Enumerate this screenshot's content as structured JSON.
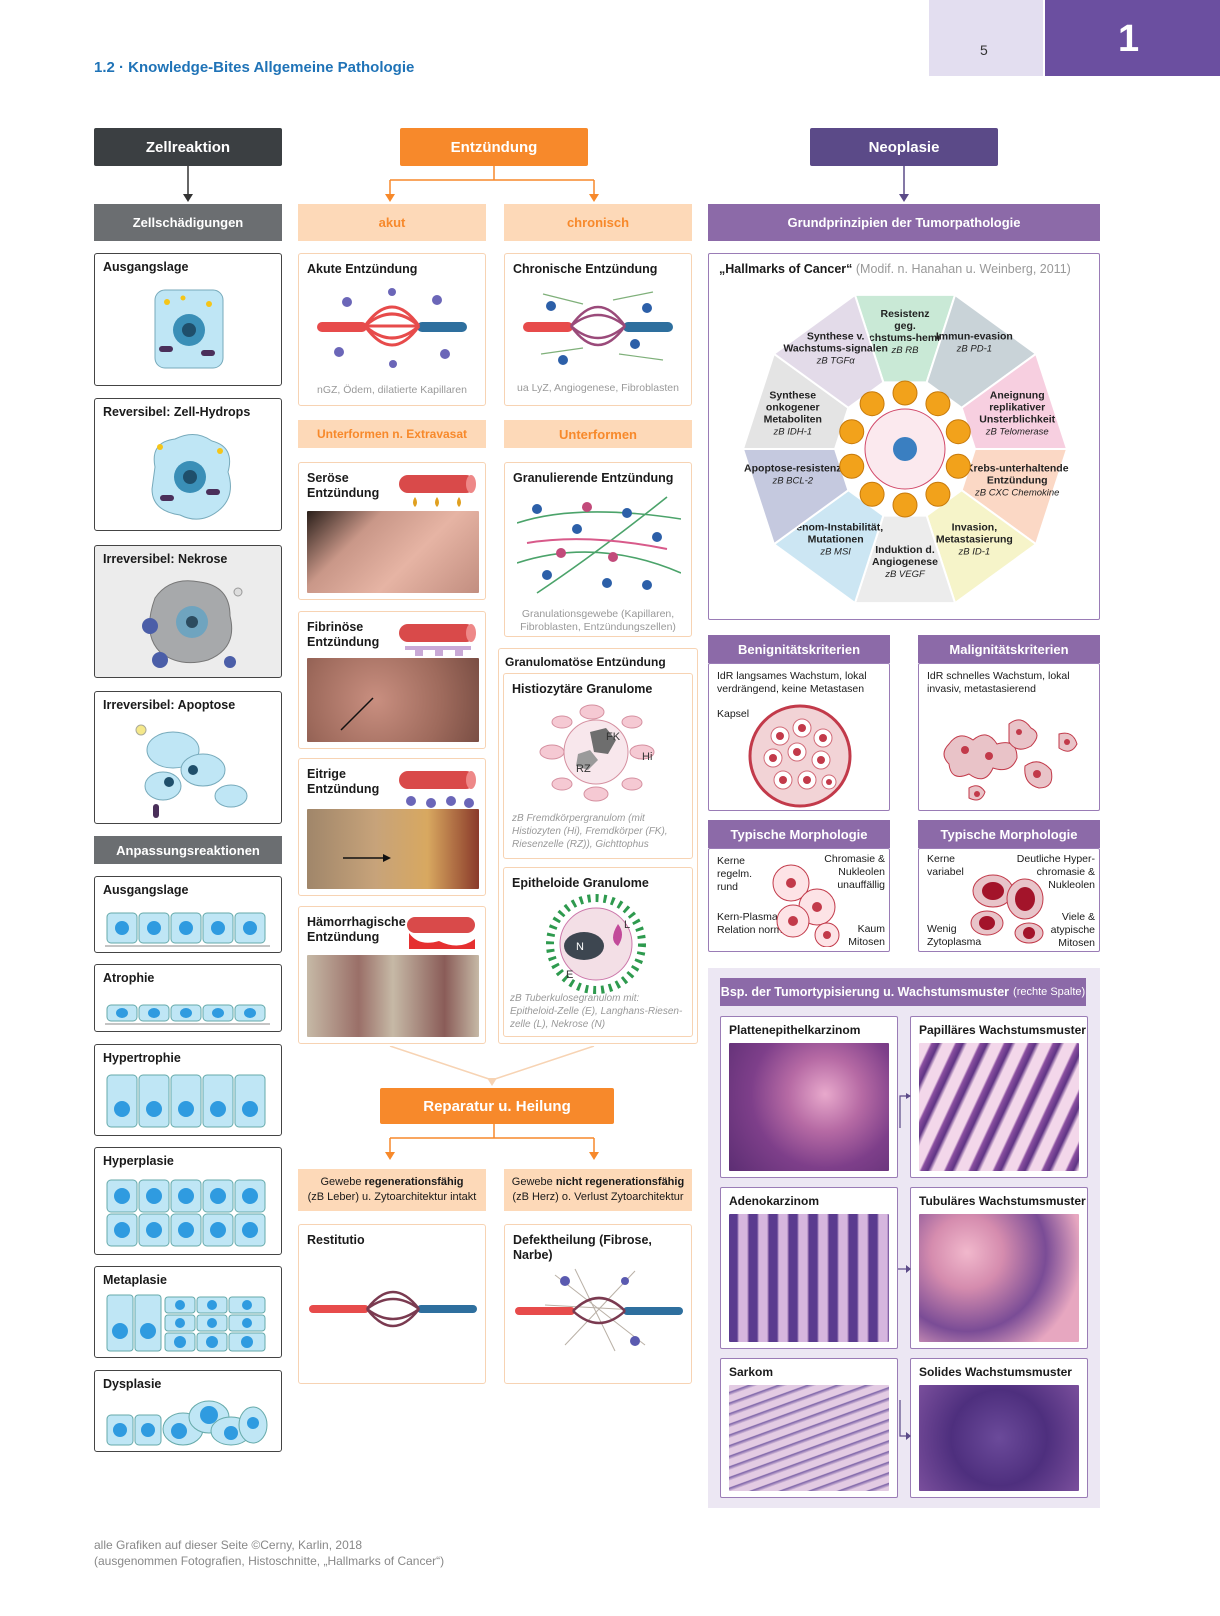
{
  "page": {
    "number": "5",
    "chapter": "1",
    "section_title": "1.2 · Knowledge-Bites Allgemeine Pathologie"
  },
  "colors": {
    "dark": "#3b3f42",
    "orange": "#f7892b",
    "orange_light": "#fdd9b8",
    "purple": "#5b4a88",
    "purple_mid": "#8c6aa8",
    "blue_title": "#1f73b7"
  },
  "col1": {
    "header": "Zellreaktion",
    "sub1": "Zellschädigungen",
    "boxes1": [
      "Ausgangslage",
      "Reversibel: Zell-Hydrops",
      "Irreversibel: Nekrose",
      "Irreversibel: Apoptose"
    ],
    "sub2": "Anpassungsreaktionen",
    "boxes2": [
      "Ausgangslage",
      "Atrophie",
      "Hypertrophie",
      "Hyperplasie",
      "Metaplasie",
      "Dysplasie"
    ]
  },
  "col2": {
    "header": "Entzündung",
    "acute": {
      "label": "akut",
      "box_title": "Akute Entzündung",
      "box_caption": "nGZ, Ödem, dilatierte Kapillaren",
      "sub": "Unterformen n. Extravasat",
      "forms": [
        "Seröse Entzündung",
        "Fibrinöse Entzündung",
        "Eitrige Entzündung",
        "Hämorrhagische Entzündung"
      ]
    },
    "chronic": {
      "label": "chronisch",
      "box_title": "Chronische Entzündung",
      "box_caption": "ua LyZ, Angiogenese, Fibroblasten",
      "sub": "Unterformen",
      "gran_title": "Granulierende Entzündung",
      "gran_caption": "Granulationsgewebe (Kapillaren, Fibroblasten, Entzündungszellen)",
      "granulomatous": "Granulomatöse Entzündung",
      "histio_title": "Histiozytäre Granulome",
      "histio_labels": {
        "fk": "FK",
        "hi": "Hi",
        "rz": "RZ"
      },
      "histio_note": "zB Fremdkörpergranulom (mit Histiozyten (Hi), Fremdkörper (FK), Riesenzelle (RZ)), Gichttophus",
      "epi_title": "Epitheloide Granulome",
      "epi_labels": {
        "n": "N",
        "e": "E",
        "l": "L"
      },
      "epi_note": "zB Tuberkulosegranulom mit: Epitheloid-Zelle (E), Langhans-Riesen-zelle (L), Nekrose (N)"
    },
    "repair": {
      "label": "Reparatur u. Heilung",
      "left_pre": "Gewebe ",
      "left_bold": "regenerationsfähig",
      "left_post": "(zB Leber) u. Zytoarchitektur intakt",
      "right_pre": "Gewebe ",
      "right_bold": "nicht regenerationsfähig",
      "right_post": "(zB Herz) o. Verlust Zytoarchitektur",
      "restitutio": "Restitutio",
      "defekt": "Defektheilung (Fibrose, Narbe)"
    }
  },
  "col3": {
    "header": "Neoplasie",
    "sub": "Grundprinzipien der Tumorpathologie",
    "hallmarks_title": "„Hallmarks of Cancer“",
    "hallmarks_source": "(Modif. n. Hanahan u. Weinberg, 2011)",
    "hallmarks": [
      {
        "name": "Resistenz geg. Wachstums-hemmer",
        "ex": "zB RB",
        "color": "#c9e9d6"
      },
      {
        "name": "Immun-evasion",
        "ex": "zB PD-1",
        "color": "#c9d3d8"
      },
      {
        "name": "Aneignung replikativer Unsterblichkeit",
        "ex": "zB Telomerase",
        "color": "#f7cfe0"
      },
      {
        "name": "Krebs-unterhaltende Entzündung",
        "ex": "zB CXC Chemokine",
        "color": "#fbd8c5"
      },
      {
        "name": "Invasion, Metastasierung",
        "ex": "zB ID-1",
        "color": "#f6f4c9"
      },
      {
        "name": "Induktion d. Angiogenese",
        "ex": "zB VEGF",
        "color": "#ececec"
      },
      {
        "name": "Genom-Instabilität, Mutationen",
        "ex": "zB MSI",
        "color": "#cce6f3"
      },
      {
        "name": "Apoptose-resistenz",
        "ex": "zB BCL-2",
        "color": "#c5c9df"
      },
      {
        "name": "Synthese onkogener Metaboliten",
        "ex": "zB IDH-1",
        "color": "#e4e4e4"
      },
      {
        "name": "Synthese v. Wachstums-signalen",
        "ex": "zB TGFα",
        "color": "#e3dbe9"
      }
    ],
    "benign": {
      "title": "Benignitätskriterien",
      "text": "IdR langsames Wachstum, lokal verdrängend, keine Metastasen",
      "capsule": "Kapsel"
    },
    "malign": {
      "title": "Malignitätskriterien",
      "text": "IdR schnelles Wachstum, lokal invasiv, metastasierend"
    },
    "morph_title": "Typische Morphologie",
    "morph_benign": {
      "a": "Kerne regelm. rund",
      "b": "Chromasie & Nukleolen unauffällig",
      "c": "Kern-Plasma-Relation normal",
      "d": "Kaum Mitosen"
    },
    "morph_malign": {
      "a": "Kerne variabel",
      "b": "Deutliche Hyper-chromasie & Nukleolen",
      "c": "Wenig Zytoplasma",
      "d": "Viele & atypische Mitosen"
    },
    "typing_title": "Bsp. der Tumortypisierung u. Wachstumsmuster",
    "typing_note": "(rechte Spalte)",
    "types": [
      "Plattenepithelkarzinom",
      "Adenokarzinom",
      "Sarkom"
    ],
    "patterns": [
      "Papilläres Wachstumsmuster",
      "Tubuläres Wachstumsmuster",
      "Solides Wachstumsmuster"
    ]
  },
  "footer": {
    "line1": "alle Grafiken auf dieser Seite ©Cerny, Karlin, 2018",
    "line2": "(ausgenommen Fotografien, Histoschnitte, „Hallmarks of Cancer“)"
  }
}
